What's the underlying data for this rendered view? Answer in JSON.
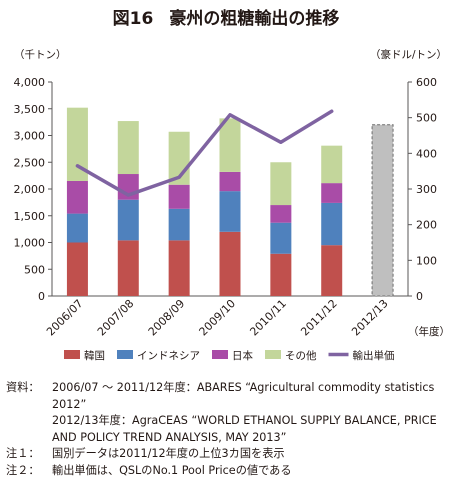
{
  "title": {
    "figure_no": "図16",
    "text": "豪州の粗糖輸出の推移"
  },
  "chart_data": {
    "type": "bar",
    "stacked": true,
    "categories": [
      "2006/07",
      "2007/08",
      "2008/09",
      "2009/10",
      "2010/11",
      "2011/12",
      "2012/13"
    ],
    "series": [
      {
        "name": "韓国",
        "color": "#c0504d",
        "values": [
          1000,
          1040,
          1040,
          1200,
          790,
          950,
          null
        ]
      },
      {
        "name": "インドネシア",
        "color": "#4f81bd",
        "values": [
          540,
          760,
          590,
          760,
          580,
          790,
          null
        ]
      },
      {
        "name": "日本",
        "color": "#a94ca7",
        "values": [
          610,
          480,
          450,
          360,
          330,
          370,
          null
        ]
      },
      {
        "name": "その他",
        "color": "#c3d69b",
        "values": [
          1370,
          990,
          990,
          1000,
          800,
          700,
          null
        ]
      }
    ],
    "total_only": {
      "color": "#bfbfbf",
      "values": [
        null,
        null,
        null,
        null,
        null,
        null,
        3200
      ]
    },
    "line": {
      "name": "輸出単価",
      "color": "#7f63a1",
      "axis": "right",
      "values": [
        365,
        283,
        333,
        508,
        431,
        518,
        null
      ]
    },
    "ylabel_left": "（千トン）",
    "ylabel_right": "（豪ドル/トン）",
    "xlabel": "（年度）",
    "ylim_left": [
      0,
      4000
    ],
    "ylim_right": [
      0,
      600
    ],
    "yticks_left": [
      "0",
      "500",
      "1,000",
      "1,500",
      "2,000",
      "2,500",
      "3,000",
      "3,500",
      "4,000"
    ],
    "yticks_right": [
      "0",
      "100",
      "200",
      "300",
      "400",
      "500",
      "600"
    ],
    "grid": false,
    "legend_position": "bottom"
  },
  "notes": [
    {
      "key": "資料：",
      "lines": [
        "2006/07 ～ 2011/12年度：ABARES “Agricultural commodity statistics 2012”",
        "2012/13年度：AgraCEAS “WORLD ETHANOL SUPPLY BALANCE, PRICE AND POLICY TREND ANALYSIS, MAY 2013”"
      ]
    },
    {
      "key": "注１：",
      "lines": [
        "国別データは2011/12年度の上位3カ国を表示"
      ]
    },
    {
      "key": "注２：",
      "lines": [
        "輸出単価は、QSLのNo.1 Pool Priceの値である"
      ]
    }
  ]
}
